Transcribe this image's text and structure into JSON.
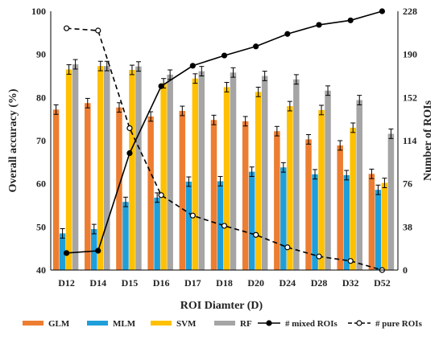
{
  "chart_data": {
    "type": "bar",
    "xlabel": "ROI Diamter (D)",
    "ylabel": "Overall accuracy (%)",
    "y2label": "Number of ROIs",
    "ylim": [
      40,
      100
    ],
    "y_ticks": [
      "40",
      "50",
      "60",
      "70",
      "80",
      "90",
      "100"
    ],
    "y2lim": [
      0,
      228
    ],
    "y2_ticks": [
      "0",
      "38",
      "76",
      "114",
      "152",
      "190",
      "228"
    ],
    "categories": [
      "D12",
      "D14",
      "D15",
      "D16",
      "D17",
      "D18",
      "D20",
      "D24",
      "D28",
      "D32",
      "D52"
    ],
    "grid": false,
    "legend_position": "bottom",
    "series": [
      {
        "name": "GLM",
        "kind": "bar",
        "color": "#ED7D31",
        "values": [
          77.2,
          78.7,
          77.7,
          75.6,
          76.9,
          74.8,
          74.5,
          72.2,
          70.3,
          68.9,
          62.3
        ]
      },
      {
        "name": "MLM",
        "kind": "bar",
        "color": "#1F9FDA",
        "values": [
          48.5,
          49.5,
          55.8,
          56.8,
          60.5,
          60.6,
          62.8,
          63.8,
          62.2,
          62.0,
          58.6
        ]
      },
      {
        "name": "SVM",
        "kind": "bar",
        "color": "#FFC000",
        "values": [
          86.5,
          87.3,
          86.4,
          83.3,
          84.4,
          82.4,
          81.3,
          78.0,
          77.1,
          73.0,
          60.2
        ]
      },
      {
        "name": "RF",
        "kind": "bar",
        "color": "#A5A5A5",
        "values": [
          87.7,
          87.3,
          87.2,
          85.3,
          86.1,
          85.8,
          85.0,
          84.2,
          81.6,
          79.4,
          71.6
        ]
      },
      {
        "name": "# mixed ROIs",
        "kind": "line",
        "axis": "right",
        "dash": false,
        "color": "#000000",
        "values": [
          15,
          17,
          103,
          162,
          180,
          189,
          197,
          208,
          216,
          220,
          228
        ]
      },
      {
        "name": "# pure ROIs",
        "kind": "line",
        "axis": "right",
        "dash": true,
        "color": "#000000",
        "values": [
          213,
          211,
          125,
          66,
          48,
          39,
          31,
          20,
          12,
          8,
          0
        ]
      }
    ]
  }
}
